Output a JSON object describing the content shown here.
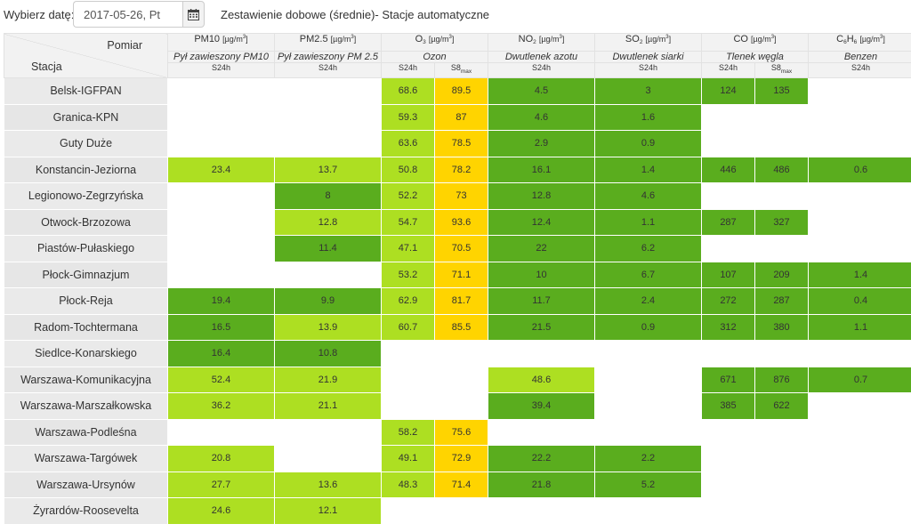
{
  "header": {
    "date_label": "Wybierz datę:",
    "date_value": "2017-05-26, Pt",
    "title": "Zestawienie dobowe (średnie)- Stacje automatyczne",
    "calendar_icon": "calendar-icon"
  },
  "table": {
    "corner_measure": "Pomiar",
    "corner_station": "Stacja",
    "unit": "[µg/m³]",
    "pollutants": [
      {
        "base": "PM10",
        "sub": "",
        "desc": "Pył zawieszony PM10",
        "aggs": [
          "S24h"
        ]
      },
      {
        "base": "PM2.5",
        "sub": "",
        "desc": "Pył zawieszony PM 2.5",
        "aggs": [
          "S24h"
        ]
      },
      {
        "base": "O",
        "sub": "3",
        "desc": "Ozon",
        "aggs": [
          "S24h",
          "S8max"
        ]
      },
      {
        "base": "NO",
        "sub": "2",
        "desc": "Dwutlenek azotu",
        "aggs": [
          "S24h"
        ]
      },
      {
        "base": "SO",
        "sub": "2",
        "desc": "Dwutlenek siarki",
        "aggs": [
          "S24h"
        ]
      },
      {
        "base": "CO",
        "sub": "",
        "desc": "Tlenek węgla",
        "aggs": [
          "S24h",
          "S8max"
        ]
      },
      {
        "base": "C6H6",
        "sub": "",
        "desc": "Benzen",
        "aggs": [
          "S24h"
        ]
      }
    ],
    "legend_colors": {
      "very_good": "#5aad1e",
      "good": "#addf22",
      "moderate": "#ffd400",
      "empty": "#ffffff"
    },
    "rows": [
      {
        "station": "Belsk-IGFPAN",
        "cells": [
          [
            "",
            ""
          ],
          [
            "",
            ""
          ],
          [
            "68.6",
            "good"
          ],
          [
            "89.5",
            "moderate"
          ],
          [
            "4.5",
            "very_good"
          ],
          [
            "3",
            "very_good"
          ],
          [
            "124",
            "very_good"
          ],
          [
            "135",
            "very_good"
          ],
          [
            "",
            ""
          ]
        ]
      },
      {
        "station": "Granica-KPN",
        "cells": [
          [
            "",
            ""
          ],
          [
            "",
            ""
          ],
          [
            "59.3",
            "good"
          ],
          [
            "87",
            "moderate"
          ],
          [
            "4.6",
            "very_good"
          ],
          [
            "1.6",
            "very_good"
          ],
          [
            "",
            ""
          ],
          [
            "",
            ""
          ],
          [
            "",
            ""
          ]
        ]
      },
      {
        "station": "Guty Duże",
        "cells": [
          [
            "",
            ""
          ],
          [
            "",
            ""
          ],
          [
            "63.6",
            "good"
          ],
          [
            "78.5",
            "moderate"
          ],
          [
            "2.9",
            "very_good"
          ],
          [
            "0.9",
            "very_good"
          ],
          [
            "",
            ""
          ],
          [
            "",
            ""
          ],
          [
            "",
            ""
          ]
        ]
      },
      {
        "station": "Konstancin-Jeziorna",
        "cells": [
          [
            "23.4",
            "good"
          ],
          [
            "13.7",
            "good"
          ],
          [
            "50.8",
            "good"
          ],
          [
            "78.2",
            "moderate"
          ],
          [
            "16.1",
            "very_good"
          ],
          [
            "1.4",
            "very_good"
          ],
          [
            "446",
            "very_good"
          ],
          [
            "486",
            "very_good"
          ],
          [
            "0.6",
            "very_good"
          ]
        ]
      },
      {
        "station": "Legionowo-Zegrzyńska",
        "cells": [
          [
            "",
            ""
          ],
          [
            "8",
            "very_good"
          ],
          [
            "52.2",
            "good"
          ],
          [
            "73",
            "moderate"
          ],
          [
            "12.8",
            "very_good"
          ],
          [
            "4.6",
            "very_good"
          ],
          [
            "",
            ""
          ],
          [
            "",
            ""
          ],
          [
            "",
            ""
          ]
        ]
      },
      {
        "station": "Otwock-Brzozowa",
        "cells": [
          [
            "",
            ""
          ],
          [
            "12.8",
            "good"
          ],
          [
            "54.7",
            "good"
          ],
          [
            "93.6",
            "moderate"
          ],
          [
            "12.4",
            "very_good"
          ],
          [
            "1.1",
            "very_good"
          ],
          [
            "287",
            "very_good"
          ],
          [
            "327",
            "very_good"
          ],
          [
            "",
            ""
          ]
        ]
      },
      {
        "station": "Piastów-Pułaskiego",
        "cells": [
          [
            "",
            ""
          ],
          [
            "11.4",
            "very_good"
          ],
          [
            "47.1",
            "good"
          ],
          [
            "70.5",
            "moderate"
          ],
          [
            "22",
            "very_good"
          ],
          [
            "6.2",
            "very_good"
          ],
          [
            "",
            ""
          ],
          [
            "",
            ""
          ],
          [
            "",
            ""
          ]
        ]
      },
      {
        "station": "Płock-Gimnazjum",
        "cells": [
          [
            "",
            ""
          ],
          [
            "",
            ""
          ],
          [
            "53.2",
            "good"
          ],
          [
            "71.1",
            "moderate"
          ],
          [
            "10",
            "very_good"
          ],
          [
            "6.7",
            "very_good"
          ],
          [
            "107",
            "very_good"
          ],
          [
            "209",
            "very_good"
          ],
          [
            "1.4",
            "very_good"
          ]
        ]
      },
      {
        "station": "Płock-Reja",
        "cells": [
          [
            "19.4",
            "very_good"
          ],
          [
            "9.9",
            "very_good"
          ],
          [
            "62.9",
            "good"
          ],
          [
            "81.7",
            "moderate"
          ],
          [
            "11.7",
            "very_good"
          ],
          [
            "2.4",
            "very_good"
          ],
          [
            "272",
            "very_good"
          ],
          [
            "287",
            "very_good"
          ],
          [
            "0.4",
            "very_good"
          ]
        ]
      },
      {
        "station": "Radom-Tochtermana",
        "cells": [
          [
            "16.5",
            "very_good"
          ],
          [
            "13.9",
            "good"
          ],
          [
            "60.7",
            "good"
          ],
          [
            "85.5",
            "moderate"
          ],
          [
            "21.5",
            "very_good"
          ],
          [
            "0.9",
            "very_good"
          ],
          [
            "312",
            "very_good"
          ],
          [
            "380",
            "very_good"
          ],
          [
            "1.1",
            "very_good"
          ]
        ]
      },
      {
        "station": "Siedlce-Konarskiego",
        "cells": [
          [
            "16.4",
            "very_good"
          ],
          [
            "10.8",
            "very_good"
          ],
          [
            "",
            ""
          ],
          [
            "",
            ""
          ],
          [
            "",
            ""
          ],
          [
            "",
            ""
          ],
          [
            "",
            ""
          ],
          [
            "",
            ""
          ],
          [
            "",
            ""
          ]
        ]
      },
      {
        "station": "Warszawa-Komunikacyjna",
        "cells": [
          [
            "52.4",
            "good"
          ],
          [
            "21.9",
            "good"
          ],
          [
            "",
            ""
          ],
          [
            "",
            ""
          ],
          [
            "48.6",
            "good"
          ],
          [
            "",
            ""
          ],
          [
            "671",
            "very_good"
          ],
          [
            "876",
            "very_good"
          ],
          [
            "0.7",
            "very_good"
          ]
        ]
      },
      {
        "station": "Warszawa-Marszałkowska",
        "cells": [
          [
            "36.2",
            "good"
          ],
          [
            "21.1",
            "good"
          ],
          [
            "",
            ""
          ],
          [
            "",
            ""
          ],
          [
            "39.4",
            "very_good"
          ],
          [
            "",
            ""
          ],
          [
            "385",
            "very_good"
          ],
          [
            "622",
            "very_good"
          ],
          [
            "",
            ""
          ]
        ]
      },
      {
        "station": "Warszawa-Podleśna",
        "cells": [
          [
            "",
            ""
          ],
          [
            "",
            ""
          ],
          [
            "58.2",
            "good"
          ],
          [
            "75.6",
            "moderate"
          ],
          [
            "",
            ""
          ],
          [
            "",
            ""
          ],
          [
            "",
            ""
          ],
          [
            "",
            ""
          ],
          [
            "",
            ""
          ]
        ]
      },
      {
        "station": "Warszawa-Targówek",
        "cells": [
          [
            "20.8",
            "good"
          ],
          [
            "",
            ""
          ],
          [
            "49.1",
            "good"
          ],
          [
            "72.9",
            "moderate"
          ],
          [
            "22.2",
            "very_good"
          ],
          [
            "2.2",
            "very_good"
          ],
          [
            "",
            ""
          ],
          [
            "",
            ""
          ],
          [
            "",
            ""
          ]
        ]
      },
      {
        "station": "Warszawa-Ursynów",
        "cells": [
          [
            "27.7",
            "good"
          ],
          [
            "13.6",
            "good"
          ],
          [
            "48.3",
            "good"
          ],
          [
            "71.4",
            "moderate"
          ],
          [
            "21.8",
            "very_good"
          ],
          [
            "5.2",
            "very_good"
          ],
          [
            "",
            ""
          ],
          [
            "",
            ""
          ],
          [
            "",
            ""
          ]
        ]
      },
      {
        "station": "Żyrardów-Roosevelta",
        "cells": [
          [
            "24.6",
            "good"
          ],
          [
            "12.1",
            "good"
          ],
          [
            "",
            ""
          ],
          [
            "",
            ""
          ],
          [
            "",
            ""
          ],
          [
            "",
            ""
          ],
          [
            "",
            ""
          ],
          [
            "",
            ""
          ],
          [
            "",
            ""
          ]
        ]
      }
    ]
  }
}
